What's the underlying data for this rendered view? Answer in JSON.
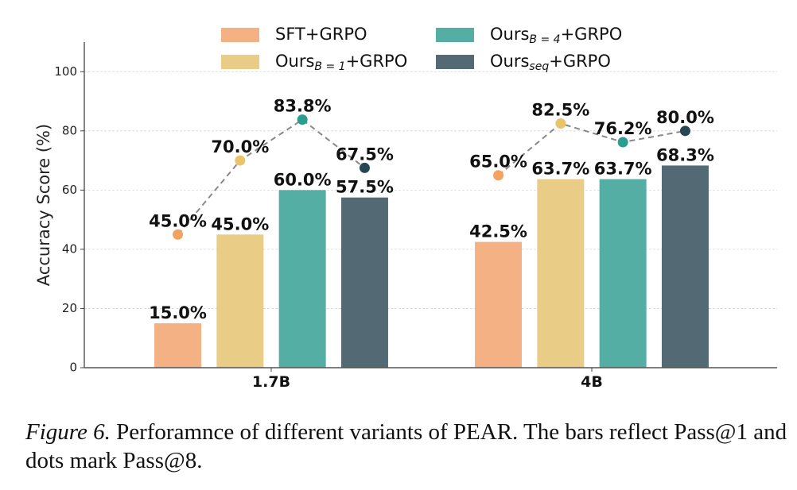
{
  "chart_data": {
    "type": "bar",
    "title": "",
    "xlabel": "",
    "ylabel": "Accuracy Score (%)",
    "ylim": [
      0,
      110
    ],
    "yticks": [
      0,
      20,
      40,
      60,
      80,
      100
    ],
    "grid": true,
    "legend_position": "top-center",
    "categories": [
      "1.7B",
      "4B"
    ],
    "series": [
      {
        "name": "SFT+GRPO",
        "name_main": "SFT+GRPO",
        "name_sub": "",
        "name_suffix": "",
        "color": "#F4B183",
        "dot_color": "#F4A261",
        "bar_values": [
          15.0,
          42.5
        ],
        "dot_values": [
          45.0,
          65.0
        ],
        "bar_labels": [
          "15.0%",
          "42.5%"
        ],
        "dot_labels": [
          "45.0%",
          "65.0%"
        ]
      },
      {
        "name": "Ours_{B=1}+GRPO",
        "name_main": "Ours",
        "name_sub": "B = 1",
        "name_suffix": "+GRPO",
        "color": "#E9CC85",
        "dot_color": "#E9C46A",
        "bar_values": [
          45.0,
          63.7
        ],
        "dot_values": [
          70.0,
          82.5
        ],
        "bar_labels": [
          "45.0%",
          "63.7%"
        ],
        "dot_labels": [
          "70.0%",
          "82.5%"
        ]
      },
      {
        "name": "Ours_{B=4}+GRPO",
        "name_main": "Ours",
        "name_sub": "B = 4",
        "name_suffix": "+GRPO",
        "color": "#55AEA3",
        "dot_color": "#2A9D8F",
        "bar_values": [
          60.0,
          63.7
        ],
        "dot_values": [
          83.8,
          76.2
        ],
        "bar_labels": [
          "60.0%",
          "63.7%"
        ],
        "dot_labels": [
          "83.8%",
          "76.2%"
        ]
      },
      {
        "name": "Ours_{seq}+GRPO",
        "name_main": "Ours",
        "name_sub": "seq",
        "name_suffix": "+GRPO",
        "color": "#536A74",
        "dot_color": "#264653",
        "bar_values": [
          57.5,
          68.3
        ],
        "dot_values": [
          67.5,
          80.0
        ],
        "bar_labels": [
          "57.5%",
          "68.3%"
        ],
        "dot_labels": [
          "67.5%",
          "80.0%"
        ]
      }
    ],
    "line_style": {
      "color": "#888888",
      "dashed": true
    },
    "annotations": {
      "bars": "Pass@1",
      "dots": "Pass@8"
    }
  },
  "caption": {
    "figure_label": "Figure 6.",
    "text": "Perforamnce of different variants of PEAR. The bars reflect Pass@1 and dots mark Pass@8."
  }
}
